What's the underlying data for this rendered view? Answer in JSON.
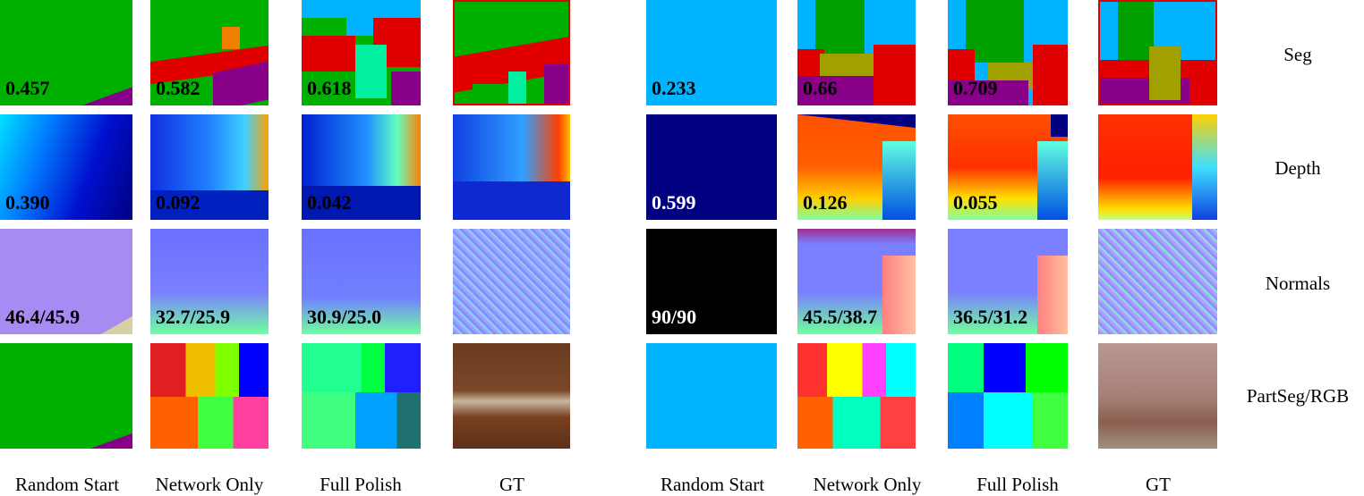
{
  "row_labels": [
    "Seg",
    "Depth",
    "Normals",
    "PartSeg/RGB"
  ],
  "column_labels": [
    "Random Start",
    "Network Only",
    "Full Polish",
    "GT"
  ],
  "left": {
    "seg": [
      "0.457",
      "0.582",
      "0.618"
    ],
    "depth": [
      "0.390",
      "0.092",
      "0.042"
    ],
    "normals": [
      "46.4/45.9",
      "32.7/25.9",
      "30.9/25.0"
    ]
  },
  "right": {
    "seg": [
      "0.233",
      "0.66",
      "0.709"
    ],
    "depth": [
      "0.599",
      "0.126",
      "0.055"
    ],
    "normals": [
      "90/90",
      "45.5/38.7",
      "36.5/31.2"
    ]
  },
  "colors": {
    "seg_green": "#00b000",
    "seg_red": "#e00000",
    "seg_sky": "#00b4ff",
    "seg_purple": "#880088",
    "depth_navy": "#000080",
    "normal_lavender": "#a68cf2"
  }
}
